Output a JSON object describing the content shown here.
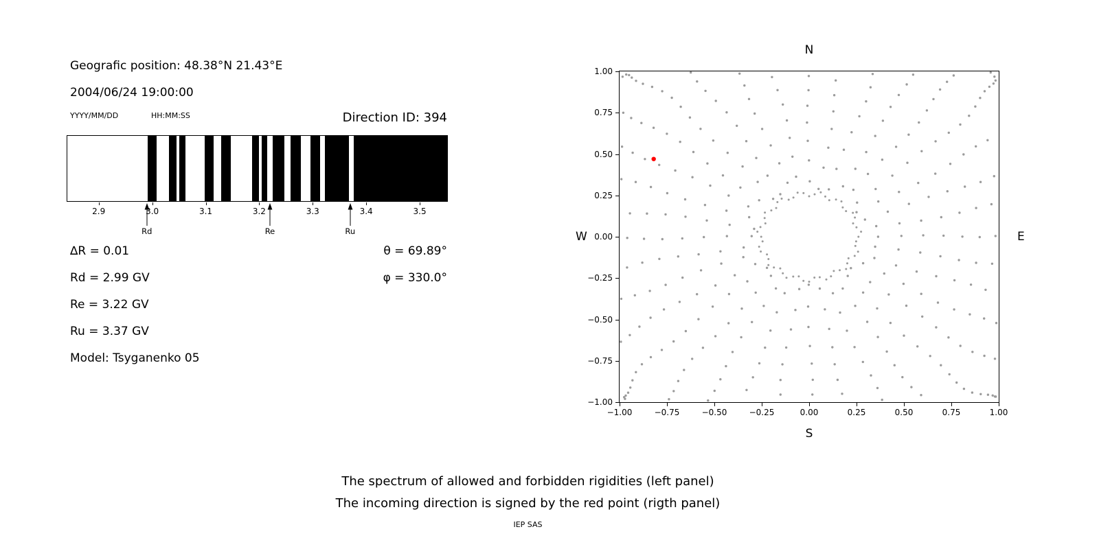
{
  "header": {
    "geographic_position": "Geografic position: 48.38°N 21.43°E",
    "datetime": "2004/06/24 19:00:00",
    "date_format_label": "YYYY/MM/DD",
    "time_format_label": "HH:MM:SS",
    "direction_id_label": "Direction ID: 394"
  },
  "info_panel": {
    "delta_r": "∆R = 0.01",
    "rd": "Rd = 2.99 GV",
    "re": "Re = 3.22 GV",
    "ru": "Ru = 3.37 GV",
    "model": "Model: Tsyganenko 05",
    "theta": "θ = 69.89°",
    "phi": "φ = 330.0°"
  },
  "caption": {
    "line1": "The spectrum of allowed and forbidden rigidities (left panel)",
    "line2": "The incoming direction is signed by the red point (rigth panel)",
    "credit": "IEP SAS"
  },
  "chart_data": [
    {
      "type": "bar",
      "description": "Barcode spectrum of allowed (black) and forbidden (white) rigidities; penumbra between Rd and Ru",
      "xlim": [
        2.84,
        3.55
      ],
      "xticks": [
        2.9,
        3.0,
        3.1,
        3.2,
        3.3,
        3.4,
        3.5
      ],
      "bar_color": "#000000",
      "black_bands": [
        [
          2.99,
          3.007
        ],
        [
          3.03,
          3.044
        ],
        [
          3.049,
          3.061
        ],
        [
          3.097,
          3.114
        ],
        [
          3.128,
          3.146
        ],
        [
          3.185,
          3.198
        ],
        [
          3.203,
          3.214
        ],
        [
          3.224,
          3.246
        ],
        [
          3.257,
          3.277
        ],
        [
          3.294,
          3.313
        ],
        [
          3.322,
          3.367
        ],
        [
          3.375,
          3.55
        ]
      ],
      "markers": [
        {
          "label": "Rd",
          "x": 2.99
        },
        {
          "label": "Re",
          "x": 3.22
        },
        {
          "label": "Ru",
          "x": 3.37
        }
      ]
    },
    {
      "type": "scatter",
      "description": "Asymptotic directions: gray dots form ~36 radial spokes plus an inner dotted ring; red point marks the incoming direction",
      "xlim": [
        -1.0,
        1.0
      ],
      "ylim": [
        -1.0,
        1.0
      ],
      "xticks": [
        -1.0,
        -0.75,
        -0.5,
        -0.25,
        0.0,
        0.25,
        0.5,
        0.75,
        1.0
      ],
      "yticks": [
        -1.0,
        -0.75,
        -0.5,
        -0.25,
        0.0,
        0.25,
        0.5,
        0.75,
        1.0
      ],
      "compass_labels": {
        "top": "N",
        "right": "E",
        "bottom": "S",
        "left": "W"
      },
      "dot_color": "#9b9b9b",
      "pattern": {
        "spoke_count": 36,
        "spoke_r_start": 0.33,
        "spoke_r_end": 1.38,
        "dots_per_spoke": 17,
        "ring_radius": 0.26,
        "ring_dots": 56,
        "angle_drift_deg": 6
      },
      "red_point": {
        "x": -0.82,
        "y": 0.47,
        "color": "#ff0000"
      }
    }
  ]
}
